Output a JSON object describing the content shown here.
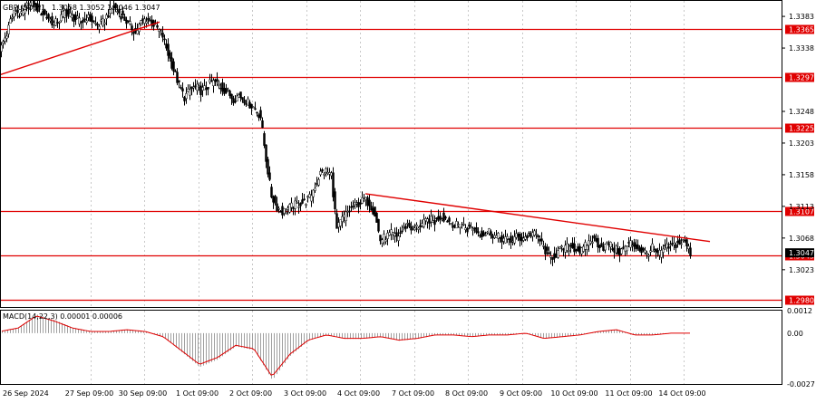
{
  "chart_data": [
    {
      "type": "candlestick",
      "symbol_label": "GBPUSD,H1",
      "ohlc_label": "1.3058 1.3052 1.3046 1.3047",
      "x_tick_labels": [
        "26 Sep 2024",
        "27 Sep 09:00",
        "30 Sep 09:00",
        "1 Oct 09:00",
        "2 Oct 09:00",
        "3 Oct 09:00",
        "4 Oct 09:00",
        "7 Oct 09:00",
        "8 Oct 09:00",
        "9 Oct 09:00",
        "10 Oct 09:00",
        "11 Oct 09:00",
        "14 Oct 09:00"
      ],
      "y_tick_labels": [
        "1.3383",
        "1.3338",
        "1.3248",
        "1.3203",
        "1.3158",
        "1.3113",
        "1.3068",
        "1.3023"
      ],
      "ylim": [
        1.297,
        1.3405
      ],
      "horizontal_levels": [
        {
          "value": 1.3365,
          "label": "1.3365"
        },
        {
          "value": 1.3297,
          "label": "1.3297"
        },
        {
          "value": 1.3225,
          "label": "1.3225"
        },
        {
          "value": 1.3107,
          "label": "1.3107"
        },
        {
          "value": 1.3043,
          "label": "1.3043"
        },
        {
          "value": 1.298,
          "label": "1.2980"
        }
      ],
      "trendlines": [
        {
          "x": [
            0,
            176
          ],
          "y": [
            1.33,
            1.3375
          ]
        },
        {
          "x": [
            403,
            783
          ],
          "y": [
            1.3131,
            1.3063
          ]
        }
      ],
      "colors": {
        "level": "#e00000",
        "trendline": "#e00000",
        "candle": "#000000",
        "price_label_bg": "#e00000"
      },
      "path_x": [
        0,
        6,
        12,
        18,
        24,
        30,
        36,
        42,
        48,
        54,
        60,
        66,
        72,
        78,
        84,
        90,
        96,
        102,
        108,
        114,
        120,
        126,
        132,
        138,
        144,
        150,
        156,
        162,
        168,
        174,
        180,
        186,
        192,
        198,
        204,
        210,
        216,
        222,
        228,
        234,
        240,
        246,
        252,
        258,
        264,
        270,
        276,
        282,
        288,
        294,
        300,
        306,
        312,
        318,
        324,
        330,
        336,
        342,
        348,
        354,
        360,
        366,
        372,
        378,
        384,
        390,
        396,
        402,
        408,
        414,
        420,
        426,
        432,
        438,
        444,
        450,
        456,
        462,
        468,
        474,
        480,
        486,
        492,
        498,
        504,
        510,
        516,
        522,
        528,
        534,
        540,
        546,
        552,
        558,
        564,
        570,
        576,
        582,
        588,
        594,
        600,
        606,
        612,
        618,
        624,
        630,
        636,
        642,
        648,
        654,
        660,
        666,
        672,
        678,
        684,
        690,
        696,
        702,
        708,
        714,
        720,
        726,
        732,
        738,
        744,
        750,
        756,
        762
      ],
      "path_y": [
        1.3337,
        1.3352,
        1.3378,
        1.3392,
        1.3384,
        1.3398,
        1.3402,
        1.3394,
        1.3387,
        1.3381,
        1.3372,
        1.3378,
        1.339,
        1.3384,
        1.3379,
        1.3374,
        1.3382,
        1.3377,
        1.337,
        1.3374,
        1.3387,
        1.3396,
        1.3388,
        1.3379,
        1.337,
        1.336,
        1.3374,
        1.338,
        1.3374,
        1.3366,
        1.3355,
        1.333,
        1.3307,
        1.3285,
        1.3268,
        1.3278,
        1.3283,
        1.3277,
        1.3281,
        1.329,
        1.3288,
        1.328,
        1.3274,
        1.3266,
        1.3271,
        1.3265,
        1.3258,
        1.3252,
        1.324,
        1.318,
        1.3128,
        1.3112,
        1.3105,
        1.311,
        1.3114,
        1.3117,
        1.3119,
        1.3125,
        1.3142,
        1.316,
        1.3163,
        1.3158,
        1.308,
        1.3095,
        1.3105,
        1.3112,
        1.3117,
        1.3122,
        1.3118,
        1.3102,
        1.3065,
        1.307,
        1.3074,
        1.3069,
        1.3078,
        1.3088,
        1.308,
        1.3085,
        1.3089,
        1.3094,
        1.3091,
        1.3099,
        1.3096,
        1.309,
        1.3086,
        1.3088,
        1.3081,
        1.3083,
        1.3076,
        1.3074,
        1.3078,
        1.3071,
        1.3068,
        1.3066,
        1.3064,
        1.307,
        1.3067,
        1.3071,
        1.3075,
        1.3069,
        1.3055,
        1.304,
        1.3043,
        1.305,
        1.3054,
        1.3056,
        1.3052,
        1.3049,
        1.306,
        1.3066,
        1.306,
        1.3055,
        1.306,
        1.3052,
        1.3048,
        1.3054,
        1.3061,
        1.3056,
        1.305,
        1.3046,
        1.3054,
        1.3043,
        1.3052,
        1.3055,
        1.3058,
        1.3061,
        1.3063,
        1.3047
      ],
      "current_price_label": "1.3047"
    },
    {
      "type": "bar",
      "label": "MACD(14,22,3) 0.00001 0.00006",
      "y_tick_labels": [
        "0.0012",
        "0.00",
        "-0.0027"
      ],
      "ylim": [
        -0.0027,
        0.0012
      ],
      "bar_color": "#a0a0a0",
      "signal_color": "#e00000",
      "hist_x": [
        0,
        20,
        40,
        60,
        80,
        100,
        120,
        140,
        160,
        180,
        200,
        220,
        240,
        260,
        280,
        300,
        320,
        340,
        360,
        380,
        400,
        420,
        440,
        460,
        480,
        500,
        520,
        540,
        560,
        580,
        600,
        620,
        640,
        660,
        680,
        700,
        720,
        740,
        760
      ],
      "hist_values": [
        0.0001,
        0.0003,
        0.001,
        0.0007,
        0.0003,
        0.0001,
        0.0001,
        0.0002,
        0.0001,
        -0.0002,
        -0.001,
        -0.0018,
        -0.0014,
        -0.0007,
        -0.0009,
        -0.0025,
        -0.0012,
        -0.0004,
        -0.0001,
        -0.0003,
        -0.0003,
        -0.0002,
        -0.0004,
        -0.0003,
        -0.0001,
        -0.0001,
        -0.0002,
        -0.0001,
        -0.0001,
        0.0,
        -0.0003,
        -0.0002,
        -0.0001,
        0.0001,
        0.0002,
        -0.0001,
        -0.0001,
        0.0,
        0.0
      ]
    }
  ]
}
